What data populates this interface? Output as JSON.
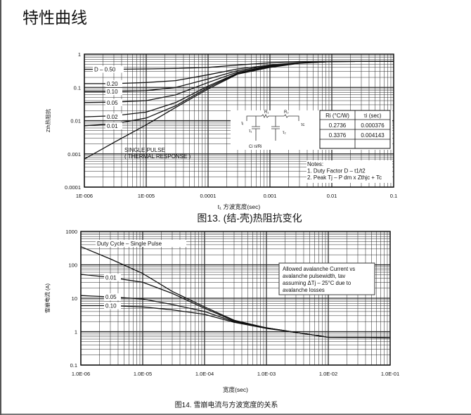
{
  "page_title": "特性曲线",
  "chart_data": [
    {
      "type": "line",
      "title": "图13.  (结-壳)热阻抗变化",
      "xlabel": "t₁ 方波宽度(sec)",
      "ylabel": "Zth热阻抗",
      "xscale": "log",
      "yscale": "log",
      "xlim": [
        1e-06,
        0.1
      ],
      "ylim": [
        0.0001,
        1
      ],
      "grid": true,
      "xticks": [
        "1E-006",
        "1E-005",
        "0.0001",
        "0.001",
        "0.01",
        "0.1"
      ],
      "yticks": [
        "1",
        "0.1",
        "0.01",
        "0.001",
        "0.0001"
      ],
      "x": [
        1e-06,
        3e-06,
        1e-05,
        3e-05,
        0.0001,
        0.0003,
        0.001,
        0.003,
        0.01,
        0.1
      ],
      "series": [
        {
          "name": "D – 0.50",
          "values": [
            0.35,
            0.35,
            0.36,
            0.37,
            0.4,
            0.47,
            0.55,
            0.6,
            0.61,
            0.61
          ]
        },
        {
          "name": "0.20",
          "values": [
            0.13,
            0.13,
            0.14,
            0.16,
            0.24,
            0.36,
            0.47,
            0.56,
            0.6,
            0.61
          ]
        },
        {
          "name": "0.10",
          "values": [
            0.075,
            0.075,
            0.08,
            0.1,
            0.18,
            0.32,
            0.45,
            0.55,
            0.6,
            0.61
          ]
        },
        {
          "name": "0.05",
          "values": [
            0.035,
            0.036,
            0.04,
            0.06,
            0.14,
            0.29,
            0.43,
            0.55,
            0.6,
            0.61
          ]
        },
        {
          "name": "0.02",
          "values": [
            0.013,
            0.014,
            0.018,
            0.035,
            0.11,
            0.27,
            0.42,
            0.54,
            0.6,
            0.61
          ]
        },
        {
          "name": "0.01",
          "values": [
            0.007,
            0.008,
            0.012,
            0.028,
            0.1,
            0.26,
            0.41,
            0.54,
            0.6,
            0.61
          ]
        },
        {
          "name": "SINGLE PULSE\n( THERMAL RESPONSE )",
          "values": [
            0.0007,
            0.0022,
            0.0075,
            0.025,
            0.09,
            0.25,
            0.4,
            0.53,
            0.6,
            0.61
          ]
        }
      ],
      "table": {
        "headers": [
          "Ri (°C/W)",
          "τi (sec)"
        ],
        "rows": [
          [
            "0.2736",
            "0.000376"
          ],
          [
            "0.3376",
            "0.004143"
          ],
          [
            "",
            ""
          ]
        ]
      },
      "circuit_labels": {
        "r1": "R₁",
        "r2": "R₂",
        "tj": "τⱼ",
        "tc": "τc",
        "t1": "τ₁",
        "t2": "τ₂",
        "ci": "Ci   τi/Ri"
      },
      "notes": [
        "Notes:",
        "1. Duty Factor D – t1/t2",
        "2. Peak Tj – P dm x Zthjc + Tc"
      ]
    },
    {
      "type": "line",
      "title": "图14. 雪崩电流与方波宽度的关系",
      "xlabel": "宽度(sec)",
      "ylabel": "雪崩电流 (A)",
      "xscale": "log",
      "yscale": "log",
      "xlim": [
        1e-06,
        0.1
      ],
      "ylim": [
        0.1,
        1000
      ],
      "grid": true,
      "xticks": [
        "1.0E-06",
        "1.0E-05",
        "1.0E-04",
        "1.0E-03",
        "1.0E-02",
        "1.0E-01"
      ],
      "yticks": [
        "1000",
        "100",
        "10",
        "1",
        "0.1"
      ],
      "x": [
        1e-06,
        3e-06,
        1e-05,
        3e-05,
        0.0001,
        0.0003,
        0.001,
        0.003,
        0.01,
        0.1
      ],
      "series": [
        {
          "name": "Duty Cycle – Single Pulse",
          "values": [
            350,
            150,
            55,
            16,
            5.5,
            2.2,
            1.3,
            0.95,
            0.68,
            0.66
          ]
        },
        {
          "name": "0.01",
          "values": [
            52,
            42,
            30,
            14,
            5,
            2.1,
            1.3,
            0.95,
            0.68,
            0.66
          ]
        },
        {
          "name": "0.05",
          "values": [
            12,
            11,
            9.5,
            6.5,
            4,
            2,
            1.3,
            0.95,
            0.68,
            0.66
          ]
        },
        {
          "name": "0.10",
          "values": [
            6,
            6,
            5.5,
            4.5,
            3.3,
            1.9,
            1.25,
            0.95,
            0.68,
            0.66
          ]
        }
      ],
      "annotation": "Allowed avalanche Current vs avalanche pulsewidth, tav assuming ΔTj – 25°C due to avalanche losses"
    }
  ]
}
